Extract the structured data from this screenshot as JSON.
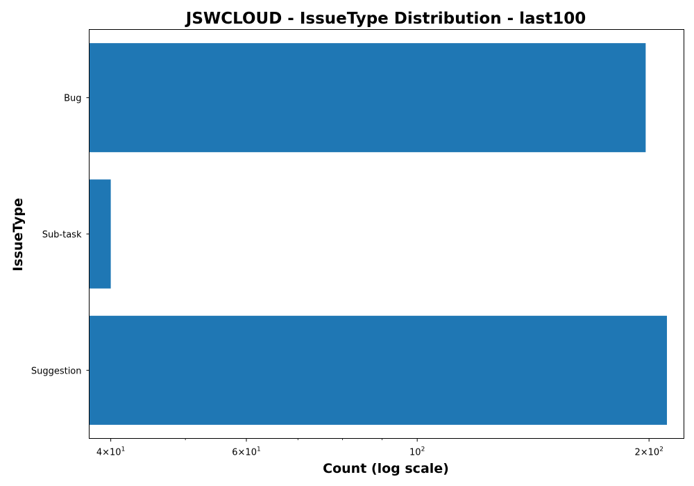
{
  "chart_data": {
    "type": "bar",
    "orientation": "horizontal",
    "title": "JSWCLOUD - IssueType Distribution - last100",
    "xlabel": "Count (log scale)",
    "ylabel": "IssueType",
    "xscale": "log",
    "xlim": [
      37.5,
      222
    ],
    "categories": [
      "Bug",
      "Sub-task",
      "Suggestion"
    ],
    "values": [
      198,
      40,
      211
    ],
    "bar_color": "#1f77b4",
    "x_ticks": [
      {
        "value": 40,
        "base": "4",
        "exp": "1"
      },
      {
        "value": 60,
        "base": "6",
        "exp": "1"
      },
      {
        "value": 100,
        "base": "",
        "exp": "2"
      },
      {
        "value": 200,
        "base": "2",
        "exp": "2"
      }
    ],
    "x_minor_ticks": [
      50,
      70,
      80,
      90
    ],
    "grid": false,
    "legend": "none"
  }
}
